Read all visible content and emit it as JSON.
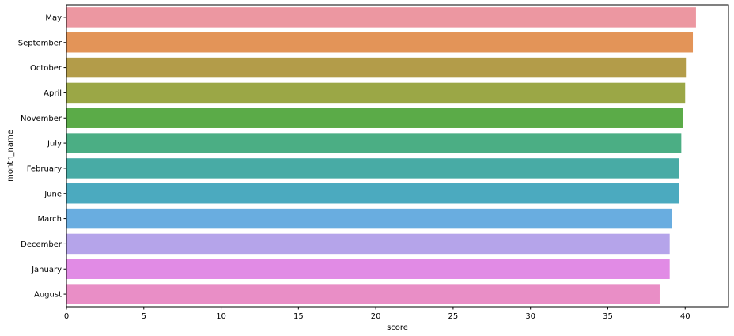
{
  "chart_data": {
    "type": "bar",
    "orientation": "horizontal",
    "categories": [
      "May",
      "September",
      "October",
      "April",
      "November",
      "July",
      "February",
      "June",
      "March",
      "December",
      "January",
      "August"
    ],
    "values": [
      40.7,
      40.5,
      40.05,
      40.0,
      39.85,
      39.75,
      39.6,
      39.6,
      39.15,
      39.0,
      39.0,
      38.35
    ],
    "colors": [
      "#ec97a1",
      "#e39458",
      "#b39c49",
      "#9ba746",
      "#5bab48",
      "#4bae84",
      "#48aba5",
      "#4baabf",
      "#69ade0",
      "#b5a4ea",
      "#e18be5",
      "#e98ec6"
    ],
    "xlabel": "score",
    "ylabel": "month_name",
    "xlim": [
      0,
      42.8
    ],
    "xticks": [
      0,
      5,
      10,
      15,
      20,
      25,
      30,
      35,
      40
    ],
    "grid": false
  }
}
